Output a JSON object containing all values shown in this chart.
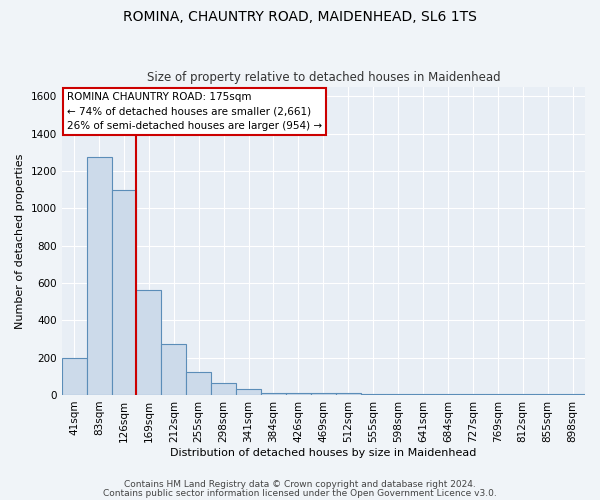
{
  "title": "ROMINA, CHAUNTRY ROAD, MAIDENHEAD, SL6 1TS",
  "subtitle": "Size of property relative to detached houses in Maidenhead",
  "xlabel": "Distribution of detached houses by size in Maidenhead",
  "ylabel": "Number of detached properties",
  "footer_line1": "Contains HM Land Registry data © Crown copyright and database right 2024.",
  "footer_line2": "Contains public sector information licensed under the Open Government Licence v3.0.",
  "annotation_title": "ROMINA CHAUNTRY ROAD: 175sqm",
  "annotation_line1": "← 74% of detached houses are smaller (2,661)",
  "annotation_line2": "26% of semi-detached houses are larger (954) →",
  "bar_color": "#ccdaea",
  "bar_edge_color": "#5b8db8",
  "ref_line_color": "#cc0000",
  "annotation_box_edge_color": "#cc0000",
  "categories": [
    "41sqm",
    "83sqm",
    "126sqm",
    "169sqm",
    "212sqm",
    "255sqm",
    "298sqm",
    "341sqm",
    "384sqm",
    "426sqm",
    "469sqm",
    "512sqm",
    "555sqm",
    "598sqm",
    "641sqm",
    "684sqm",
    "727sqm",
    "769sqm",
    "812sqm",
    "855sqm",
    "898sqm"
  ],
  "values": [
    200,
    1275,
    1100,
    560,
    275,
    125,
    65,
    30,
    10,
    10,
    10,
    10,
    5,
    5,
    5,
    5,
    5,
    5,
    5,
    5,
    5
  ],
  "ylim": [
    0,
    1650
  ],
  "yticks": [
    0,
    200,
    400,
    600,
    800,
    1000,
    1200,
    1400,
    1600
  ],
  "fig_bg_color": "#f0f4f8",
  "plot_bg_color": "#e8eef5",
  "grid_color": "#ffffff",
  "title_fontsize": 10,
  "subtitle_fontsize": 8.5,
  "ylabel_fontsize": 8,
  "xlabel_fontsize": 8,
  "tick_fontsize": 7.5,
  "footer_fontsize": 6.5
}
